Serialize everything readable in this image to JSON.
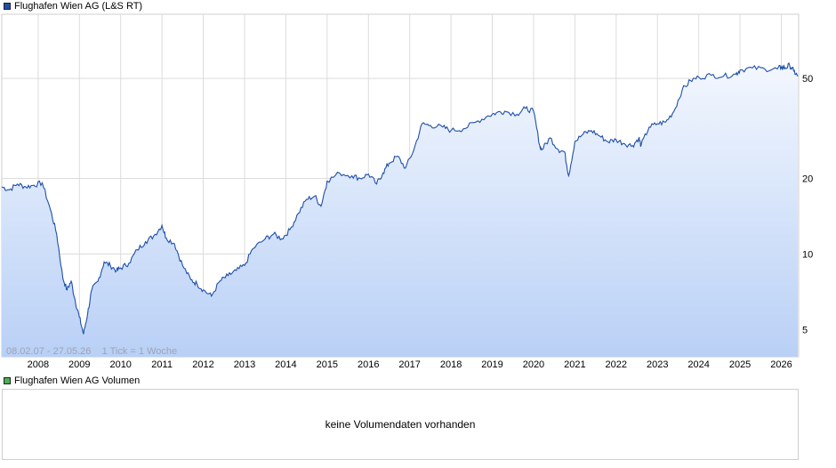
{
  "price_chart": {
    "title": "Flughafen Wien AG (L&S RT)",
    "line_color": "#1f4fa8",
    "info": "08.02.07 - 27.05.26    1 Tick = 1 Woche"
  },
  "volume_chart": {
    "title": "Flughafen Wien AG Volumen",
    "legend_color": "#4caf50",
    "empty_message": "keine Volumendaten vorhanden"
  },
  "chart_data": {
    "type": "area",
    "title": "Flughafen Wien AG (L&S RT)",
    "y_scale": "log",
    "ylim": [
      3.9,
      90
    ],
    "xlim": [
      2007.12,
      2026.42
    ],
    "y_ticks": [
      {
        "value": 5,
        "label": "5"
      },
      {
        "value": 10,
        "label": "10"
      },
      {
        "value": 20,
        "label": "20"
      },
      {
        "value": 50,
        "label": "50"
      }
    ],
    "x_ticks": [
      {
        "value": 2008,
        "label": "2008"
      },
      {
        "value": 2009,
        "label": "2009"
      },
      {
        "value": 2010,
        "label": "2010"
      },
      {
        "value": 2011,
        "label": "2011"
      },
      {
        "value": 2012,
        "label": "2012"
      },
      {
        "value": 2013,
        "label": "2013"
      },
      {
        "value": 2014,
        "label": "2014"
      },
      {
        "value": 2015,
        "label": "2015"
      },
      {
        "value": 2016,
        "label": "2016"
      },
      {
        "value": 2017,
        "label": "2017"
      },
      {
        "value": 2018,
        "label": "2018"
      },
      {
        "value": 2019,
        "label": "2019"
      },
      {
        "value": 2020,
        "label": "2020"
      },
      {
        "value": 2021,
        "label": "2021"
      },
      {
        "value": 2022,
        "label": "2022"
      },
      {
        "value": 2023,
        "label": "2023"
      },
      {
        "value": 2024,
        "label": "2024"
      },
      {
        "value": 2025,
        "label": "2025"
      },
      {
        "value": 2026,
        "label": "2026"
      }
    ],
    "grid": true,
    "legend": "top-left",
    "series": [
      {
        "name": "Flughafen Wien AG (L&S RT)",
        "x": [
          2007.12,
          2007.3,
          2007.5,
          2007.7,
          2007.9,
          2008.1,
          2008.3,
          2008.45,
          2008.6,
          2008.7,
          2008.8,
          2008.9,
          2009.0,
          2009.1,
          2009.2,
          2009.3,
          2009.45,
          2009.6,
          2009.75,
          2009.9,
          2010.0,
          2010.2,
          2010.4,
          2010.6,
          2010.8,
          2011.0,
          2011.1,
          2011.3,
          2011.5,
          2011.7,
          2011.85,
          2012.0,
          2012.2,
          2012.4,
          2012.6,
          2012.8,
          2013.0,
          2013.2,
          2013.5,
          2013.7,
          2013.9,
          2014.1,
          2014.3,
          2014.5,
          2014.7,
          2014.85,
          2015.0,
          2015.3,
          2015.6,
          2015.8,
          2016.0,
          2016.2,
          2016.35,
          2016.5,
          2016.7,
          2016.9,
          2017.1,
          2017.3,
          2017.5,
          2017.8,
          2018.0,
          2018.3,
          2018.6,
          2018.9,
          2019.1,
          2019.3,
          2019.6,
          2019.8,
          2020.0,
          2020.15,
          2020.2,
          2020.4,
          2020.6,
          2020.75,
          2020.85,
          2021.0,
          2021.2,
          2021.4,
          2021.6,
          2021.8,
          2022.0,
          2022.2,
          2022.4,
          2022.55,
          2022.6,
          2022.8,
          2023.0,
          2023.2,
          2023.4,
          2023.6,
          2023.8,
          2024.0,
          2024.3,
          2024.6,
          2024.9,
          2025.0,
          2025.3,
          2025.6,
          2025.9,
          2026.0,
          2026.1,
          2026.2,
          2026.3,
          2026.4
        ],
        "values": [
          18.5,
          18.0,
          19.0,
          18.5,
          18.8,
          19.2,
          15.0,
          12.0,
          8.0,
          7.2,
          7.8,
          6.5,
          5.6,
          4.8,
          5.8,
          7.2,
          7.8,
          9.3,
          9.0,
          8.6,
          8.8,
          9.2,
          10.4,
          11.2,
          11.8,
          13.0,
          11.6,
          11.0,
          9.0,
          7.9,
          7.6,
          7.2,
          6.8,
          7.8,
          8.2,
          8.6,
          9.0,
          10.5,
          11.5,
          12.0,
          11.5,
          12.5,
          14.5,
          16.5,
          17.0,
          15.5,
          19.5,
          21.0,
          20.5,
          20.0,
          20.8,
          19.0,
          21.0,
          23.0,
          24.5,
          22.0,
          26.0,
          33.0,
          32.5,
          32.0,
          31.0,
          31.5,
          33.5,
          35.5,
          36.5,
          37.0,
          36.0,
          38.0,
          37.0,
          27.0,
          26.0,
          29.0,
          26.0,
          25.5,
          20.5,
          28.0,
          30.0,
          31.0,
          29.5,
          28.0,
          28.5,
          27.5,
          27.0,
          29.0,
          27.0,
          32.0,
          33.0,
          33.5,
          37.0,
          45.0,
          49.0,
          50.5,
          51.5,
          51.0,
          52.0,
          54.0,
          55.0,
          54.5,
          54.5,
          55.5,
          55.0,
          56.5,
          53.5,
          51.0
        ]
      }
    ]
  }
}
